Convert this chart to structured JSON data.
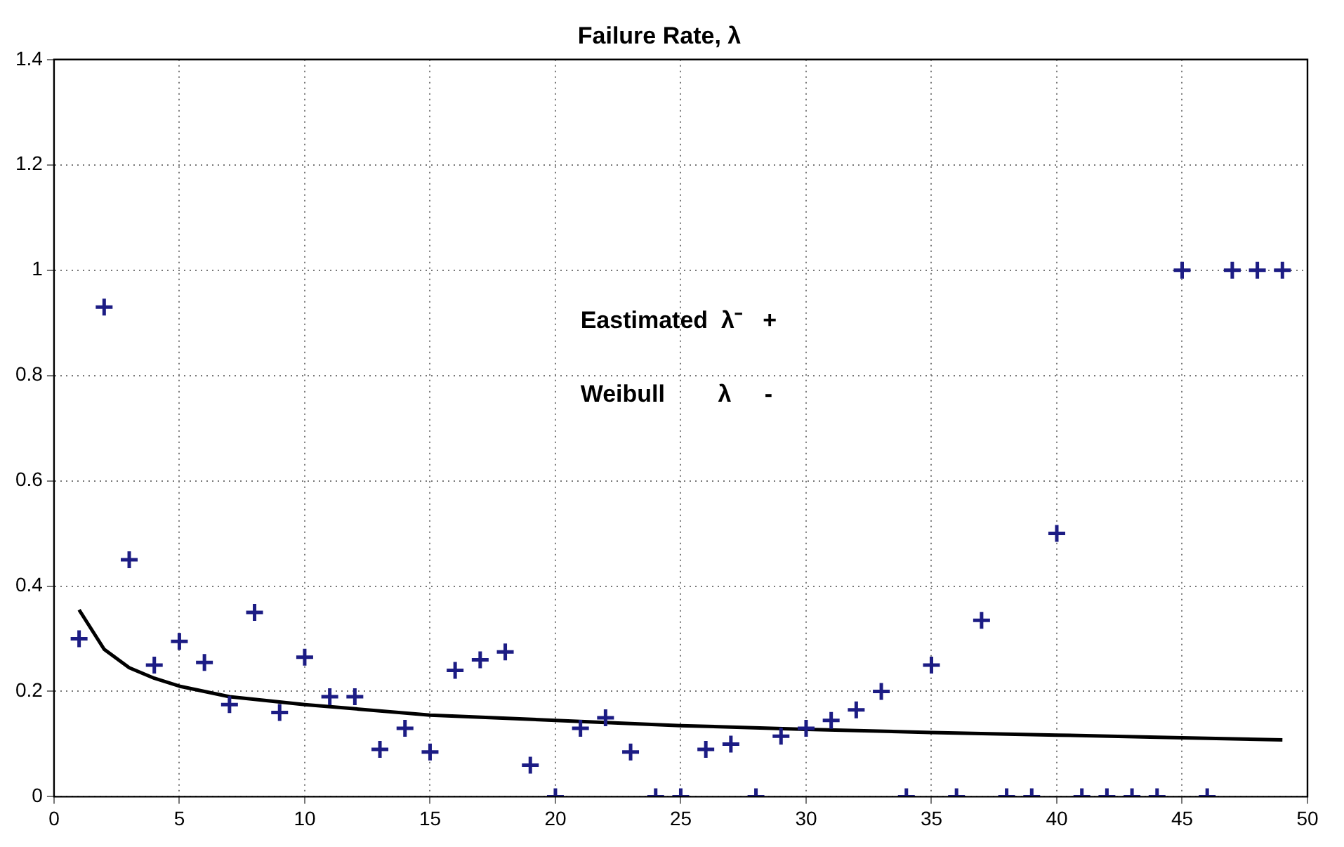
{
  "chart_data": {
    "type": "scatter",
    "title": "Failure Rate, λ",
    "annotations": [
      "Eastimated  λ⁻   +",
      "Weibull        λ     -"
    ],
    "xlim": [
      0,
      50
    ],
    "xticks": [
      0,
      5,
      10,
      15,
      20,
      25,
      30,
      35,
      40,
      45,
      50
    ],
    "ylim": [
      0,
      1.4
    ],
    "yticks": [
      0,
      0.2,
      0.4,
      0.6,
      0.8,
      1,
      1.2,
      1.4
    ],
    "grid": true,
    "marker": "cross",
    "series": [
      {
        "type": "scatter",
        "color": "#1c1c84",
        "x": [
          1,
          2,
          3,
          4,
          5,
          6,
          7,
          8,
          9,
          10,
          11,
          12,
          13,
          14,
          15,
          16,
          17,
          18,
          19,
          20,
          21,
          22,
          23,
          24,
          25,
          26,
          27,
          28,
          29,
          30,
          31,
          32,
          33,
          34,
          35,
          36,
          37,
          38,
          39,
          40,
          41,
          42,
          43,
          44,
          45,
          46,
          47,
          48,
          49
        ],
        "values": [
          0.3,
          0.93,
          0.45,
          0.25,
          0.295,
          0.255,
          0.175,
          0.35,
          0.16,
          0.265,
          0.19,
          0.19,
          0.09,
          0.13,
          0.085,
          0.24,
          0.26,
          0.275,
          0.06,
          0,
          0.13,
          0.15,
          0.085,
          0,
          0,
          0.09,
          0.1,
          0,
          0.115,
          0.13,
          0.145,
          0.165,
          0.2,
          0,
          0.25,
          0,
          0.335,
          0,
          0,
          0.5,
          0,
          0,
          0,
          0,
          1,
          0,
          1,
          1,
          1
        ]
      },
      {
        "type": "line",
        "color": "#000000",
        "marker": "none",
        "line_style": "solid",
        "x": [
          1,
          2,
          3,
          4,
          5,
          7,
          10,
          15,
          20,
          25,
          30,
          35,
          40,
          45,
          49
        ],
        "values": [
          0.355,
          0.28,
          0.245,
          0.225,
          0.21,
          0.19,
          0.175,
          0.155,
          0.145,
          0.135,
          0.128,
          0.122,
          0.117,
          0.112,
          0.108
        ]
      }
    ]
  }
}
